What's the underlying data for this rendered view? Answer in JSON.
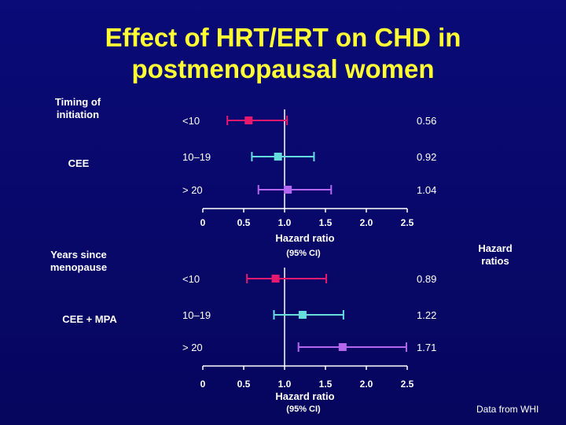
{
  "slide": {
    "title_line1": "Effect of HRT/ERT on CHD in",
    "title_line2": "postmenopausal women",
    "side_label_top": "Timing of initiation",
    "group_label_top": "CEE",
    "side_label_bottom": "Years since menopause",
    "group_label_bottom": "CEE + MPA",
    "hazard_ratios_label": "Hazard ratios",
    "source_note": "Data from WHI"
  },
  "chart_data": [
    {
      "type": "forest",
      "group": "CEE",
      "xlabel": "Hazard ratio",
      "xlabel_sub": "(95% CI)",
      "xlim": [
        0,
        2.5
      ],
      "ticks": [
        "0",
        "0.5",
        "1.0",
        "1.5",
        "2.0",
        "2.5"
      ],
      "reference_line": 1.0,
      "rows": [
        {
          "label": "<10",
          "hr": 0.56,
          "hr_label": "0.56",
          "lo": 0.3,
          "hi": 1.03,
          "color": "#e6196e"
        },
        {
          "label": "10–19",
          "hr": 0.92,
          "hr_label": "0.92",
          "lo": 0.6,
          "hi": 1.36,
          "color": "#66dddd"
        },
        {
          "label": "> 20",
          "hr": 1.04,
          "hr_label": "1.04",
          "lo": 0.68,
          "hi": 1.57,
          "color": "#b366ee"
        }
      ]
    },
    {
      "type": "forest",
      "group": "CEE + MPA",
      "xlabel": "Hazard ratio",
      "xlabel_sub": "(95% CI)",
      "xlim": [
        0,
        2.5
      ],
      "ticks": [
        "0",
        "0.5",
        "1.0",
        "1.5",
        "2.0",
        "2.5"
      ],
      "reference_line": 1.0,
      "rows": [
        {
          "label": "<10",
          "hr": 0.89,
          "hr_label": "0.89",
          "lo": 0.54,
          "hi": 1.51,
          "color": "#e6196e"
        },
        {
          "label": "10–19",
          "hr": 1.22,
          "hr_label": "1.22",
          "lo": 0.87,
          "hi": 1.72,
          "color": "#66dddd"
        },
        {
          "label": "> 20",
          "hr": 1.71,
          "hr_label": "1.71",
          "lo": 1.17,
          "hi": 2.49,
          "color": "#b366ee"
        }
      ]
    }
  ]
}
